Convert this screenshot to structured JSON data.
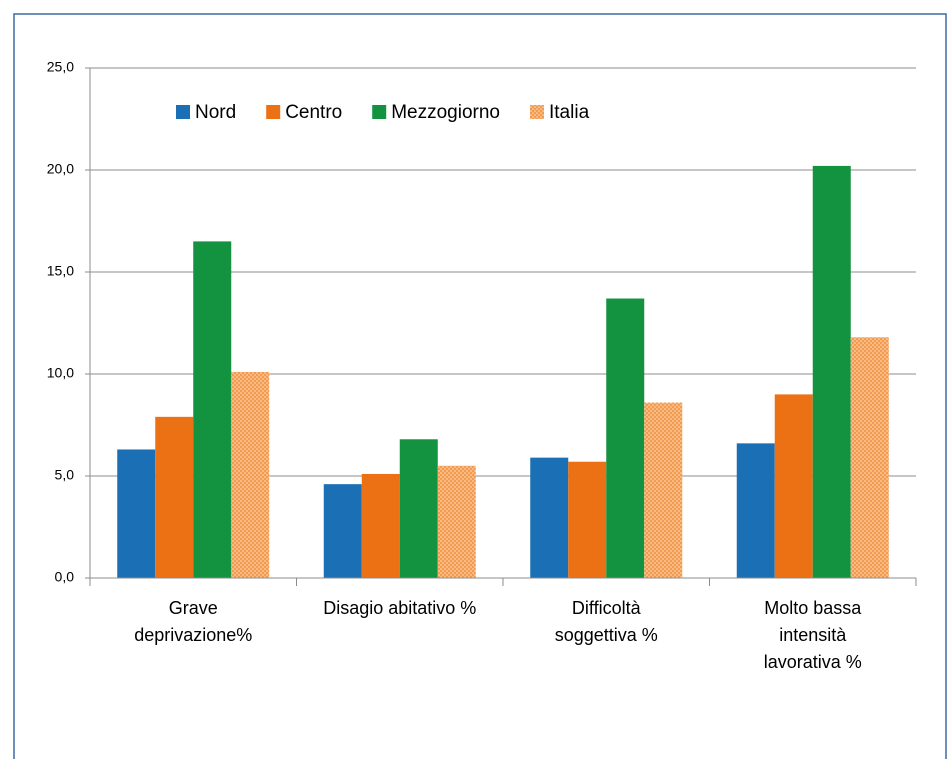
{
  "chart_data": {
    "type": "bar",
    "categories": [
      "Grave\ndeprivazione%",
      "Disagio abitativo %",
      "Difficoltà\nsoggettiva %",
      "Molto bassa\nintensità\nlavorativa %"
    ],
    "series": [
      {
        "name": "Nord",
        "color": "#1a6fb5",
        "values": [
          6.3,
          4.6,
          5.9,
          6.6
        ]
      },
      {
        "name": "Centro",
        "color": "#ec7014",
        "values": [
          7.9,
          5.1,
          5.7,
          9.0
        ]
      },
      {
        "name": "Mezzogiorno",
        "color": "#13923f",
        "values": [
          16.5,
          6.8,
          13.7,
          20.2
        ]
      },
      {
        "name": "Italia",
        "color": "#f29a4e",
        "pattern": "dotted",
        "values": [
          10.1,
          5.5,
          8.6,
          11.8
        ]
      }
    ],
    "ylim": [
      0,
      25
    ],
    "yticks": [
      {
        "value": 0,
        "label": "0,0"
      },
      {
        "value": 5,
        "label": "5,0"
      },
      {
        "value": 10,
        "label": "10,0"
      },
      {
        "value": 15,
        "label": "15,0"
      },
      {
        "value": 20,
        "label": "20,0"
      },
      {
        "value": 25,
        "label": "25,0"
      }
    ],
    "grid": true,
    "legend": "top"
  }
}
